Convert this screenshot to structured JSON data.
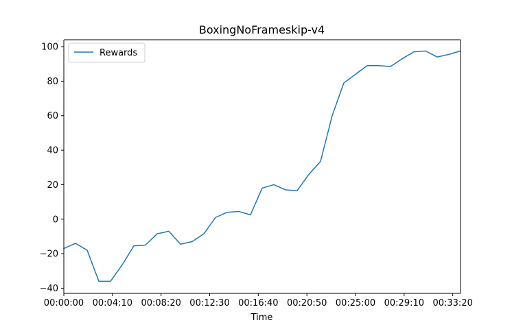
{
  "chart_data": {
    "type": "line",
    "title": "BoxingNoFrameskip-v4",
    "xlabel": "Time",
    "ylabel": "",
    "x_tick_labels": [
      "00:00:00",
      "00:04:10",
      "00:08:20",
      "00:12:30",
      "00:16:40",
      "00:20:50",
      "00:25:00",
      "00:29:10",
      "00:33:20"
    ],
    "x_ticks_seconds": [
      0,
      250,
      500,
      750,
      1000,
      1250,
      1500,
      1750,
      2000
    ],
    "xlim_seconds": [
      0,
      2040
    ],
    "yticks": [
      -40,
      -20,
      0,
      20,
      40,
      60,
      80,
      100
    ],
    "ylim": [
      -43,
      104
    ],
    "grid": false,
    "legend": {
      "position": "top-left",
      "entries": [
        "Rewards"
      ]
    },
    "series": [
      {
        "name": "Rewards",
        "color": "#1f77b4",
        "x_seconds": [
          0,
          60,
          120,
          180,
          240,
          300,
          360,
          420,
          480,
          540,
          600,
          660,
          720,
          780,
          840,
          900,
          960,
          1020,
          1080,
          1140,
          1200,
          1260,
          1320,
          1380,
          1440,
          1500,
          1560,
          1620,
          1680,
          1740,
          1800,
          1860,
          1920,
          1980,
          2040
        ],
        "y": [
          -17,
          -14,
          -18,
          -36,
          -36,
          -26.5,
          -15.5,
          -15,
          -8.5,
          -7,
          -14.5,
          -13,
          -8.5,
          1,
          4,
          4.5,
          2.5,
          18,
          20,
          17,
          16.5,
          26,
          33.5,
          60,
          79,
          84,
          89,
          89,
          88.5,
          93,
          97,
          97.5,
          94,
          95.5,
          97.5
        ]
      }
    ]
  }
}
